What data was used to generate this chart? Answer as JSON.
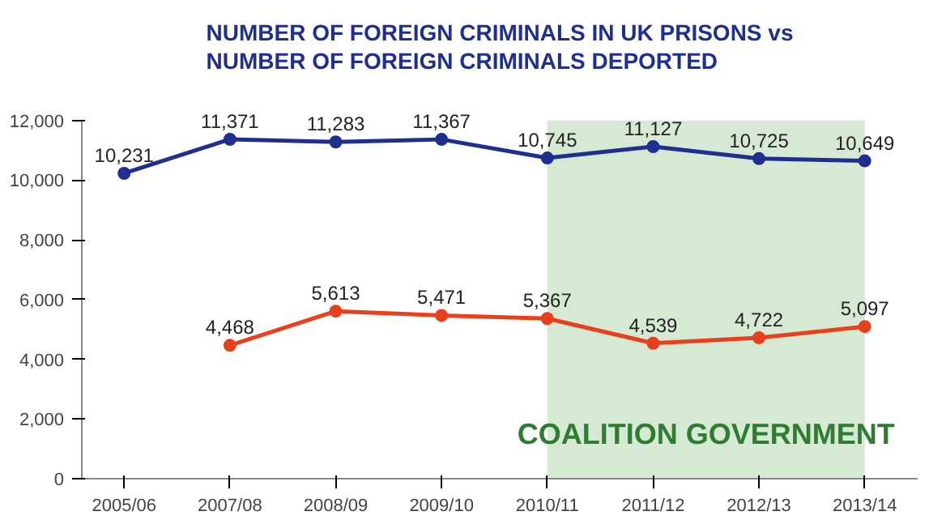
{
  "chart_data": {
    "type": "line",
    "title": "NUMBER OF FOREIGN CRIMINALS IN UK PRISONS vs NUMBER OF FOREIGN CRIMINALS DEPORTED",
    "categories": [
      "2005/06",
      "2007/08",
      "2008/09",
      "2009/10",
      "2010/11",
      "2011/12",
      "2012/13",
      "2013/14"
    ],
    "series": [
      {
        "color": "#1f2f8f",
        "values": [
          10231,
          11371,
          11283,
          11367,
          10745,
          11127,
          10725,
          10649
        ],
        "value_labels": [
          "10,231",
          "11,371",
          "11,283",
          "11,367",
          "10,745",
          "11,127",
          "10,725",
          "10,649"
        ]
      },
      {
        "color": "#e8401c",
        "values": [
          null,
          4468,
          5613,
          5471,
          5367,
          4539,
          4722,
          5097
        ],
        "value_labels": [
          null,
          "4,468",
          "5,613",
          "5,471",
          "5,367",
          "4,539",
          "4,722",
          "5,097"
        ]
      }
    ],
    "ylim": [
      0,
      12000
    ],
    "yticks": [
      {
        "value": 0,
        "label": "0"
      },
      {
        "value": 2000,
        "label": "2,000"
      },
      {
        "value": 4000,
        "label": "4,000"
      },
      {
        "value": 6000,
        "label": "6,000"
      },
      {
        "value": 8000,
        "label": "8,000"
      },
      {
        "value": 10000,
        "label": "10,000"
      },
      {
        "value": 12000,
        "label": "12,000"
      }
    ],
    "bands": [
      {
        "axis": "x",
        "from": "2010/11",
        "to": "2013/14",
        "label": "COALITION GOVERNMENT",
        "color": "#d6e9d3"
      }
    ],
    "marker": "circle",
    "line_style": "solid",
    "grid": false
  }
}
